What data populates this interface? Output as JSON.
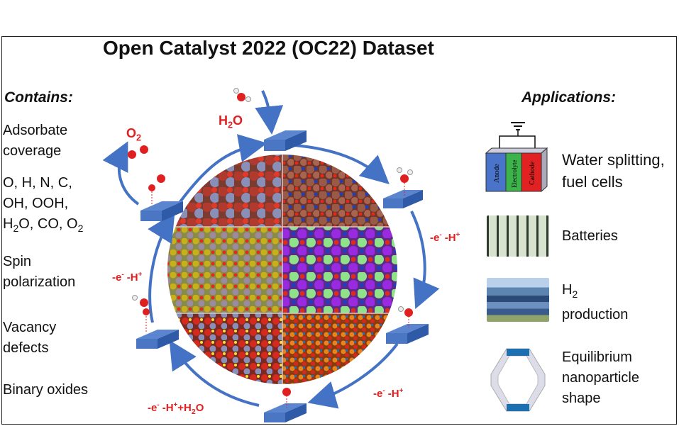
{
  "title": "Open Catalyst 2022 (OC22) Dataset",
  "contains": {
    "heading": "Contains:",
    "adsorbate_l1": "Adsorbate",
    "adsorbate_l2": "coverage",
    "species_l1": "O, H, N, C,",
    "species_l2": "OH, OOH,",
    "species_l3_a": "H",
    "species_l3_sub": "2",
    "species_l3_b": "O, CO, O",
    "species_l3_sub2": "2",
    "spin_l1": "Spin",
    "spin_l2": "polarization",
    "vacancy_l1": "Vacancy",
    "vacancy_l2": "defects",
    "binary": "Binary oxides"
  },
  "applications": {
    "heading": "Applications:",
    "water_l1": "Water splitting,",
    "water_l2": "fuel cells",
    "batteries": "Batteries",
    "h2_a": "H",
    "h2_sub": "2",
    "h2_l2": "production",
    "nano_l1": "Equilibrium",
    "nano_l2": "nanoparticle",
    "nano_l3": "shape",
    "cell_labels": [
      "Anode",
      "Electrolyte",
      "Cathode"
    ]
  },
  "cycle": {
    "h2o_a": "H",
    "h2o_sub": "2",
    "h2o_b": "O",
    "o2_a": "O",
    "o2_sub": "2",
    "step_right_a": "-e",
    "step_right_b": " -H",
    "step_bottom_right_a": "-e",
    "step_bottom_right_b": " -H",
    "step_bottom_a": "-e",
    "step_bottom_b": " -H",
    "step_bottom_c": "+H",
    "step_bottom_sub": "2",
    "step_bottom_d": "O",
    "step_left_a": "-e",
    "step_left_b": " -H",
    "sup_minus": "-",
    "sup_plus": "+"
  },
  "colors": {
    "arrow": "#4472c4",
    "slab_top": "#5b86cf",
    "slab_side": "#2e5aa8",
    "red_text": "#e02020",
    "anode": "#4a74c9",
    "electrolyte": "#3cb44b",
    "cathode": "#e22222"
  }
}
